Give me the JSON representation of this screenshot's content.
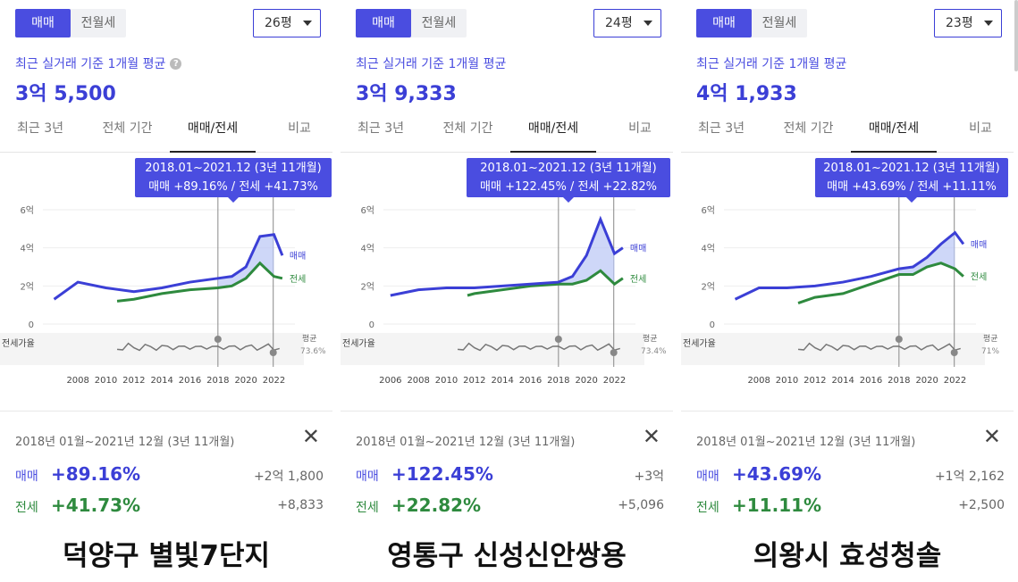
{
  "panels": [
    {
      "toggle": [
        "매매",
        "전월세"
      ],
      "size": "26평",
      "subtitle": "최근 실거래 기준 1개월 평균",
      "price": "3억 5,500",
      "tabs": [
        "최근 3년",
        "전체 기간",
        "매매/전세",
        "비교"
      ],
      "tooltip": {
        "line1": "2018.01~2021.12 (3년 11개월)",
        "line2": "매매 +89.16%  /  전세 +41.73%"
      },
      "y_ticks": [
        "6억",
        "4억",
        "2억",
        "0"
      ],
      "series_labels": {
        "sale": "매매",
        "jeonse": "전세"
      },
      "ratio_label": "전세가율",
      "avg_label": "평균",
      "avg_value": "73.6%",
      "x_ticks": [
        "2008",
        "2010",
        "2012",
        "2014",
        "2016",
        "2018",
        "2020",
        "2022"
      ],
      "detail": {
        "range": "2018년 01월~2021년 12월 (3년 11개월)",
        "sale_label": "매매",
        "sale_pct": "+89.16%",
        "sale_amt": "+2억 1,800",
        "jeonse_label": "전세",
        "jeonse_pct": "+41.73%",
        "jeonse_amt": "+8,833"
      },
      "caption": "덕양구 별빛7단지"
    },
    {
      "toggle": [
        "매매",
        "전월세"
      ],
      "size": "24평",
      "subtitle": "최근 실거래 기준 1개월 평균",
      "price": "3억 9,333",
      "tabs": [
        "최근 3년",
        "전체 기간",
        "매매/전세",
        "비교"
      ],
      "tooltip": {
        "line1": "2018.01~2021.12 (3년 11개월)",
        "line2": "매매 +122.45%  /  전세 +22.82%"
      },
      "y_ticks": [
        "6억",
        "4억",
        "2억",
        "0"
      ],
      "series_labels": {
        "sale": "매매",
        "jeonse": "전세"
      },
      "ratio_label": "전세가율",
      "avg_label": "평균",
      "avg_value": "73.4%",
      "x_ticks": [
        "2006",
        "2008",
        "2010",
        "2012",
        "2014",
        "2016",
        "2018",
        "2020",
        "2022"
      ],
      "detail": {
        "range": "2018년 01월~2021년 12월 (3년 11개월)",
        "sale_label": "매매",
        "sale_pct": "+122.45%",
        "sale_amt": "+3억",
        "jeonse_label": "전세",
        "jeonse_pct": "+22.82%",
        "jeonse_amt": "+5,096"
      },
      "caption": "영통구 신성신안쌍용"
    },
    {
      "toggle": [
        "매매",
        "전월세"
      ],
      "size": "23평",
      "subtitle": "최근 실거래 기준 1개월 평균",
      "price": "4억 1,933",
      "tabs": [
        "최근 3년",
        "전체 기간",
        "매매/전세",
        "비교"
      ],
      "tooltip": {
        "line1": "2018.01~2021.12 (3년 11개월)",
        "line2": "매매 +43.69%  /  전세 +11.11%"
      },
      "y_ticks": [
        "6억",
        "4억",
        "2억",
        "0"
      ],
      "series_labels": {
        "sale": "매매",
        "jeonse": "전세"
      },
      "ratio_label": "전세가율",
      "avg_label": "평균",
      "avg_value": "71%",
      "x_ticks": [
        "2008",
        "2010",
        "2012",
        "2014",
        "2016",
        "2018",
        "2020",
        "2022"
      ],
      "detail": {
        "range": "2018년 01월~2021년 12월 (3년 11개월)",
        "sale_label": "매매",
        "sale_pct": "+43.69%",
        "sale_amt": "+1억 2,162",
        "jeonse_label": "전세",
        "jeonse_pct": "+11.11%",
        "jeonse_amt": "+2,500"
      },
      "caption": "의왕시 효성청솔"
    }
  ],
  "chart_data": [
    {
      "type": "line",
      "x_unit": "year",
      "y_unit": "억",
      "series": [
        {
          "name": "매매",
          "points": [
            [
              2006.3,
              1.3
            ],
            [
              2008,
              2.2
            ],
            [
              2010,
              1.9
            ],
            [
              2012,
              1.7
            ],
            [
              2014,
              1.9
            ],
            [
              2016,
              2.2
            ],
            [
              2018,
              2.4
            ],
            [
              2019,
              2.5
            ],
            [
              2020,
              3.0
            ],
            [
              2021,
              4.6
            ],
            [
              2022,
              4.7
            ],
            [
              2022.6,
              3.6
            ]
          ]
        },
        {
          "name": "전세",
          "points": [
            [
              2010.8,
              1.2
            ],
            [
              2012,
              1.3
            ],
            [
              2014,
              1.6
            ],
            [
              2016,
              1.8
            ],
            [
              2018,
              1.9
            ],
            [
              2019,
              2.0
            ],
            [
              2020,
              2.4
            ],
            [
              2021,
              3.2
            ],
            [
              2022,
              2.5
            ],
            [
              2022.6,
              2.4
            ]
          ]
        }
      ],
      "ylim": [
        0,
        6
      ],
      "colors": {
        "sale": "#3b3fd6",
        "jeonse": "#2e8a3e"
      }
    },
    {
      "type": "line",
      "x_unit": "year",
      "y_unit": "억",
      "series": [
        {
          "name": "매매",
          "points": [
            [
              2006,
              1.5
            ],
            [
              2008,
              1.8
            ],
            [
              2010,
              1.9
            ],
            [
              2012,
              1.9
            ],
            [
              2014,
              2.0
            ],
            [
              2016,
              2.1
            ],
            [
              2018,
              2.2
            ],
            [
              2019,
              2.5
            ],
            [
              2020,
              3.6
            ],
            [
              2021,
              5.5
            ],
            [
              2022,
              3.7
            ],
            [
              2022.6,
              4.0
            ]
          ]
        },
        {
          "name": "전세",
          "points": [
            [
              2011.5,
              1.5
            ],
            [
              2012,
              1.6
            ],
            [
              2014,
              1.8
            ],
            [
              2016,
              2.0
            ],
            [
              2018,
              2.1
            ],
            [
              2019,
              2.1
            ],
            [
              2020,
              2.3
            ],
            [
              2021,
              2.8
            ],
            [
              2022,
              2.1
            ],
            [
              2022.6,
              2.4
            ]
          ]
        }
      ],
      "ylim": [
        0,
        6
      ],
      "colors": {
        "sale": "#3b3fd6",
        "jeonse": "#2e8a3e"
      }
    },
    {
      "type": "line",
      "x_unit": "year",
      "y_unit": "억",
      "series": [
        {
          "name": "매매",
          "points": [
            [
              2006.3,
              1.3
            ],
            [
              2008,
              1.9
            ],
            [
              2010,
              1.9
            ],
            [
              2012,
              2.0
            ],
            [
              2014,
              2.2
            ],
            [
              2016,
              2.5
            ],
            [
              2018,
              2.9
            ],
            [
              2019,
              3.0
            ],
            [
              2020,
              3.5
            ],
            [
              2021,
              4.2
            ],
            [
              2022,
              4.8
            ],
            [
              2022.6,
              4.2
            ]
          ]
        },
        {
          "name": "전세",
          "points": [
            [
              2010.8,
              1.1
            ],
            [
              2012,
              1.4
            ],
            [
              2014,
              1.6
            ],
            [
              2016,
              2.1
            ],
            [
              2018,
              2.6
            ],
            [
              2019,
              2.6
            ],
            [
              2020,
              3.0
            ],
            [
              2021,
              3.2
            ],
            [
              2022,
              2.9
            ],
            [
              2022.6,
              2.5
            ]
          ]
        }
      ],
      "ylim": [
        0,
        6
      ],
      "colors": {
        "sale": "#3b3fd6",
        "jeonse": "#2e8a3e"
      }
    }
  ]
}
